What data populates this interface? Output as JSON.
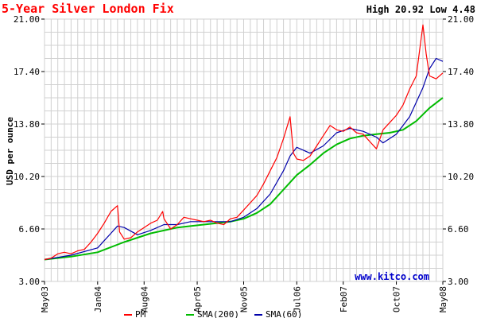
{
  "chart_data": {
    "type": "line",
    "title": "5-Year Silver London Fix",
    "high_low": "High 20.92 Low 4.48",
    "ylabel": "USD per ounce",
    "watermark": "www.kitco.com",
    "ylim": [
      3.0,
      21.0
    ],
    "y_ticks": [
      "21.00",
      "17.40",
      "13.80",
      "10.20",
      "6.60",
      "3.00"
    ],
    "y_tick_values": [
      21.0,
      17.4,
      13.8,
      10.2,
      6.6,
      3.0
    ],
    "x_ticks": [
      "May03",
      "Jan04",
      "Aug04",
      "Apr05",
      "Nov05",
      "Jul06",
      "Feb07",
      "Oct07",
      "May08"
    ],
    "x_tick_months": [
      0,
      8,
      15,
      23,
      30,
      38,
      45,
      53,
      60
    ],
    "x_range_months": [
      0,
      60
    ],
    "colors": {
      "pm": "#ff0000",
      "sma200": "#00bb00",
      "sma60": "#0000aa",
      "title": "#ff0000",
      "grid": "#d0d0d0"
    },
    "series": [
      {
        "name": "PM",
        "color": "#ff0000",
        "points": [
          [
            0,
            4.5
          ],
          [
            1,
            4.6
          ],
          [
            2,
            4.9
          ],
          [
            3,
            5.0
          ],
          [
            4,
            4.9
          ],
          [
            5,
            5.1
          ],
          [
            6,
            5.2
          ],
          [
            7,
            5.7
          ],
          [
            8,
            6.3
          ],
          [
            9,
            7.0
          ],
          [
            10,
            7.8
          ],
          [
            11,
            8.2
          ],
          [
            11.3,
            6.4
          ],
          [
            12,
            5.9
          ],
          [
            13,
            6.0
          ],
          [
            14,
            6.4
          ],
          [
            15,
            6.7
          ],
          [
            16,
            7.0
          ],
          [
            17,
            7.2
          ],
          [
            17.8,
            7.8
          ],
          [
            18,
            7.3
          ],
          [
            19,
            6.6
          ],
          [
            20,
            6.9
          ],
          [
            21,
            7.4
          ],
          [
            22,
            7.3
          ],
          [
            23,
            7.2
          ],
          [
            24,
            7.1
          ],
          [
            25,
            7.2
          ],
          [
            26,
            7.0
          ],
          [
            27,
            6.9
          ],
          [
            28,
            7.3
          ],
          [
            29,
            7.4
          ],
          [
            30,
            7.9
          ],
          [
            31,
            8.4
          ],
          [
            32,
            8.9
          ],
          [
            33,
            9.7
          ],
          [
            34,
            10.6
          ],
          [
            35,
            11.5
          ],
          [
            36,
            12.8
          ],
          [
            37,
            14.3
          ],
          [
            37.5,
            11.8
          ],
          [
            38,
            11.4
          ],
          [
            39,
            11.3
          ],
          [
            40,
            11.6
          ],
          [
            41,
            12.3
          ],
          [
            42,
            13.0
          ],
          [
            43,
            13.7
          ],
          [
            44,
            13.4
          ],
          [
            45,
            13.3
          ],
          [
            46,
            13.6
          ],
          [
            47,
            13.2
          ],
          [
            48,
            13.1
          ],
          [
            49,
            12.6
          ],
          [
            50,
            12.1
          ],
          [
            51,
            13.4
          ],
          [
            52,
            13.9
          ],
          [
            53,
            14.4
          ],
          [
            54,
            15.1
          ],
          [
            55,
            16.2
          ],
          [
            56,
            17.1
          ],
          [
            57,
            20.6
          ],
          [
            57.5,
            18.6
          ],
          [
            58,
            17.1
          ],
          [
            59,
            16.9
          ],
          [
            60,
            17.3
          ]
        ]
      },
      {
        "name": "SMA(200)",
        "color": "#00bb00",
        "points": [
          [
            0,
            4.5
          ],
          [
            4,
            4.7
          ],
          [
            8,
            5.0
          ],
          [
            12,
            5.7
          ],
          [
            16,
            6.3
          ],
          [
            20,
            6.7
          ],
          [
            24,
            6.9
          ],
          [
            28,
            7.1
          ],
          [
            30,
            7.3
          ],
          [
            32,
            7.7
          ],
          [
            34,
            8.3
          ],
          [
            36,
            9.3
          ],
          [
            38,
            10.3
          ],
          [
            40,
            11.0
          ],
          [
            42,
            11.8
          ],
          [
            44,
            12.4
          ],
          [
            46,
            12.8
          ],
          [
            48,
            13.0
          ],
          [
            50,
            13.1
          ],
          [
            52,
            13.2
          ],
          [
            54,
            13.4
          ],
          [
            56,
            14.0
          ],
          [
            58,
            14.9
          ],
          [
            60,
            15.6
          ]
        ]
      },
      {
        "name": "SMA(60)",
        "color": "#0000aa",
        "points": [
          [
            0,
            4.5
          ],
          [
            4,
            4.8
          ],
          [
            8,
            5.3
          ],
          [
            10,
            6.3
          ],
          [
            11,
            6.8
          ],
          [
            12,
            6.7
          ],
          [
            14,
            6.2
          ],
          [
            16,
            6.5
          ],
          [
            18,
            6.9
          ],
          [
            20,
            6.9
          ],
          [
            22,
            7.1
          ],
          [
            24,
            7.1
          ],
          [
            26,
            7.1
          ],
          [
            28,
            7.1
          ],
          [
            30,
            7.4
          ],
          [
            32,
            8.0
          ],
          [
            34,
            9.0
          ],
          [
            36,
            10.6
          ],
          [
            37,
            11.6
          ],
          [
            38,
            12.2
          ],
          [
            40,
            11.8
          ],
          [
            42,
            12.3
          ],
          [
            44,
            13.2
          ],
          [
            46,
            13.5
          ],
          [
            48,
            13.3
          ],
          [
            50,
            12.9
          ],
          [
            51,
            12.5
          ],
          [
            53,
            13.1
          ],
          [
            55,
            14.3
          ],
          [
            57,
            16.3
          ],
          [
            58,
            17.6
          ],
          [
            59,
            18.3
          ],
          [
            60,
            18.1
          ]
        ]
      }
    ],
    "legend": [
      {
        "label": "PM",
        "color": "#ff0000"
      },
      {
        "label": "SMA(200)",
        "color": "#00bb00"
      },
      {
        "label": "SMA(60)",
        "color": "#0000aa"
      }
    ]
  }
}
